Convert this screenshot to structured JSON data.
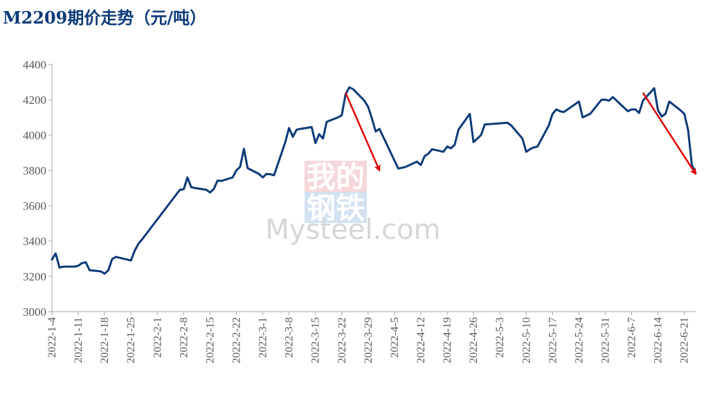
{
  "chart_data": {
    "type": "line",
    "title": "M2209期价走势（元/吨）",
    "xlabel": "",
    "ylabel": "",
    "ylim": [
      3000,
      4400
    ],
    "yticks": [
      3000,
      3200,
      3400,
      3600,
      3800,
      4000,
      4200,
      4400
    ],
    "xlim": [
      "2022-01-04",
      "2022-06-24"
    ],
    "xticks": [
      "2022-1-4",
      "2022-1-11",
      "2022-1-18",
      "2022-1-25",
      "2022-2-1",
      "2022-2-8",
      "2022-2-15",
      "2022-2-22",
      "2022-3-1",
      "2022-3-8",
      "2022-3-15",
      "2022-3-22",
      "2022-3-29",
      "2022-4-5",
      "2022-4-12",
      "2022-4-19",
      "2022-4-26",
      "2022-5-3",
      "2022-5-10",
      "2022-5-17",
      "2022-5-24",
      "2022-5-31",
      "2022-6-7",
      "2022-6-14",
      "2022-6-21"
    ],
    "grid": false,
    "legend": "none",
    "line_color": "#0b3a78",
    "arrow_color": "#e00000",
    "series": [
      {
        "x": [
          "2022-01-04",
          "2022-01-05",
          "2022-01-06",
          "2022-01-07",
          "2022-01-10",
          "2022-01-11",
          "2022-01-12",
          "2022-01-13",
          "2022-01-14",
          "2022-01-17",
          "2022-01-18",
          "2022-01-19",
          "2022-01-20",
          "2022-01-21",
          "2022-01-24",
          "2022-01-25",
          "2022-01-26",
          "2022-01-27",
          "2022-01-28",
          "2022-02-07",
          "2022-02-08",
          "2022-02-09",
          "2022-02-10",
          "2022-02-11",
          "2022-02-14",
          "2022-02-15",
          "2022-02-16",
          "2022-02-17",
          "2022-02-18",
          "2022-02-21",
          "2022-02-22",
          "2022-02-23",
          "2022-02-24",
          "2022-02-25",
          "2022-02-28",
          "2022-03-01",
          "2022-03-02",
          "2022-03-03",
          "2022-03-04",
          "2022-03-07",
          "2022-03-08",
          "2022-03-09",
          "2022-03-10",
          "2022-03-11",
          "2022-03-14",
          "2022-03-15",
          "2022-03-16",
          "2022-03-17",
          "2022-03-18",
          "2022-03-21",
          "2022-03-22",
          "2022-03-23",
          "2022-03-24",
          "2022-03-25",
          "2022-03-28",
          "2022-03-29",
          "2022-03-30",
          "2022-03-31",
          "2022-04-01",
          "2022-04-06",
          "2022-04-07",
          "2022-04-08",
          "2022-04-11",
          "2022-04-12",
          "2022-04-13",
          "2022-04-14",
          "2022-04-15",
          "2022-04-18",
          "2022-04-19",
          "2022-04-20",
          "2022-04-21",
          "2022-04-22",
          "2022-04-25",
          "2022-04-26",
          "2022-04-27",
          "2022-04-28",
          "2022-04-29",
          "2022-05-05",
          "2022-05-06",
          "2022-05-09",
          "2022-05-10",
          "2022-05-11",
          "2022-05-12",
          "2022-05-13",
          "2022-05-16",
          "2022-05-17",
          "2022-05-18",
          "2022-05-19",
          "2022-05-20",
          "2022-05-23",
          "2022-05-24",
          "2022-05-25",
          "2022-05-26",
          "2022-05-27",
          "2022-05-30",
          "2022-05-31",
          "2022-06-01",
          "2022-06-02",
          "2022-06-06",
          "2022-06-07",
          "2022-06-08",
          "2022-06-09",
          "2022-06-10",
          "2022-06-13",
          "2022-06-14",
          "2022-06-15",
          "2022-06-16",
          "2022-06-17",
          "2022-06-20",
          "2022-06-21",
          "2022-06-22",
          "2022-06-23",
          "2022-06-24"
        ],
        "y": [
          3295,
          3330,
          3250,
          3255,
          3255,
          3260,
          3275,
          3280,
          3235,
          3228,
          3215,
          3235,
          3298,
          3310,
          3295,
          3290,
          3345,
          3385,
          3410,
          3690,
          3693,
          3760,
          3705,
          3700,
          3690,
          3675,
          3695,
          3742,
          3740,
          3760,
          3800,
          3820,
          3922,
          3812,
          3780,
          3760,
          3780,
          3778,
          3772,
          3960,
          4040,
          3990,
          4030,
          4035,
          4045,
          3955,
          4005,
          3980,
          4075,
          4100,
          4112,
          4230,
          4270,
          4260,
          4195,
          4160,
          4095,
          4020,
          4035,
          3810,
          3815,
          3820,
          3850,
          3830,
          3880,
          3895,
          3920,
          3905,
          3935,
          3925,
          3945,
          4030,
          4120,
          3960,
          3980,
          4000,
          4060,
          4070,
          4055,
          3980,
          3905,
          3920,
          3930,
          3935,
          4055,
          4120,
          4145,
          4135,
          4130,
          4175,
          4190,
          4100,
          4110,
          4120,
          4200,
          4200,
          4195,
          4215,
          4135,
          4145,
          4145,
          4125,
          4195,
          4265,
          4140,
          4105,
          4120,
          4190,
          4140,
          4120,
          4030,
          3830,
          3785
        ]
      }
    ],
    "annotations": [
      {
        "type": "arrow",
        "from": [
          "2022-03-23",
          4240
        ],
        "to": [
          "2022-04-01",
          3800
        ]
      },
      {
        "type": "arrow",
        "from": [
          "2022-06-10",
          4240
        ],
        "to": [
          "2022-06-24",
          3780
        ]
      }
    ]
  },
  "watermark": {
    "cn_top": "我的",
    "cn_bottom": "钢铁",
    "en": "Mysteel.com",
    "top_color": "#f3c2c2",
    "bottom_color": "#bcd3ea"
  }
}
